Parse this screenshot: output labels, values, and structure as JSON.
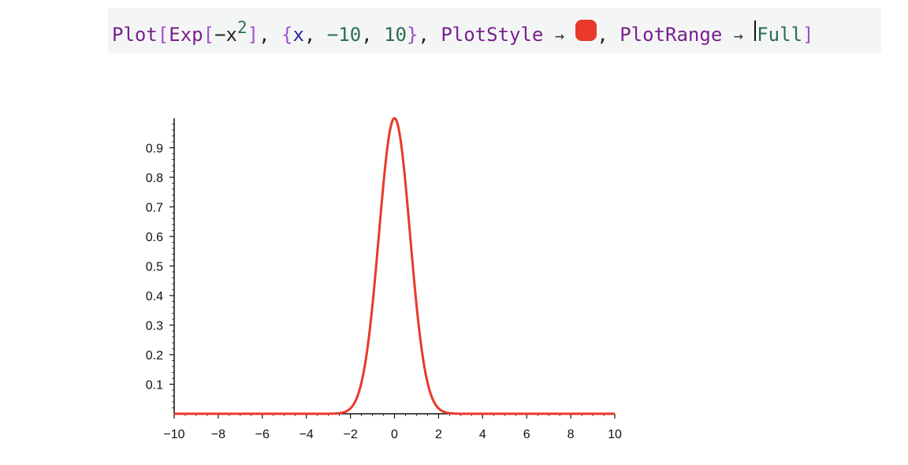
{
  "input": {
    "fn": "Plot",
    "lb": "[",
    "exp": "Exp",
    "lb2": "[",
    "minus": "−",
    "x": "x",
    "sup": "2",
    "rb2": "]",
    "comma1": ",",
    "lbrace": "{",
    "var": "x",
    "comma2": ",",
    "lo": "−10",
    "comma3": ",",
    "hi": "10",
    "rbrace": "}",
    "comma4": ",",
    "opt1": "PlotStyle",
    "arrow1": "→",
    "comma5": ",",
    "opt2": "PlotRange",
    "arrow2": "→",
    "full": "Full",
    "rb": "]"
  },
  "colors": {
    "curve": "#e8392a",
    "axis": "#111111"
  },
  "chart_data": {
    "type": "line",
    "title": "",
    "function": "Exp[-x^2]",
    "xlabel": "",
    "ylabel": "",
    "xlim": [
      -10,
      10
    ],
    "ylim": [
      0,
      1
    ],
    "x_ticks": [
      -10,
      -8,
      -6,
      -4,
      -2,
      0,
      2,
      4,
      6,
      8,
      10
    ],
    "x_tick_labels": [
      "−10",
      "−8",
      "−6",
      "−4",
      "−2",
      "0",
      "2",
      "4",
      "6",
      "8",
      "10"
    ],
    "y_ticks": [
      0.1,
      0.2,
      0.3,
      0.4,
      0.5,
      0.6,
      0.7,
      0.8,
      0.9
    ],
    "y_tick_labels": [
      "0.1",
      "0.2",
      "0.3",
      "0.4",
      "0.5",
      "0.6",
      "0.7",
      "0.8",
      "0.9"
    ],
    "series": [
      {
        "name": "Exp[-x^2]",
        "x": [
          -10,
          -3,
          -2.5,
          -2,
          -1.75,
          -1.5,
          -1.25,
          -1,
          -0.75,
          -0.5,
          -0.25,
          0,
          0.25,
          0.5,
          0.75,
          1,
          1.25,
          1.5,
          1.75,
          2,
          2.5,
          3,
          10
        ],
        "y": [
          0,
          0.0001,
          0.0019,
          0.0183,
          0.0468,
          0.1054,
          0.2096,
          0.3679,
          0.5698,
          0.7788,
          0.9394,
          1,
          0.9394,
          0.7788,
          0.5698,
          0.3679,
          0.2096,
          0.1054,
          0.0468,
          0.0183,
          0.0019,
          0.0001,
          0
        ]
      }
    ]
  }
}
